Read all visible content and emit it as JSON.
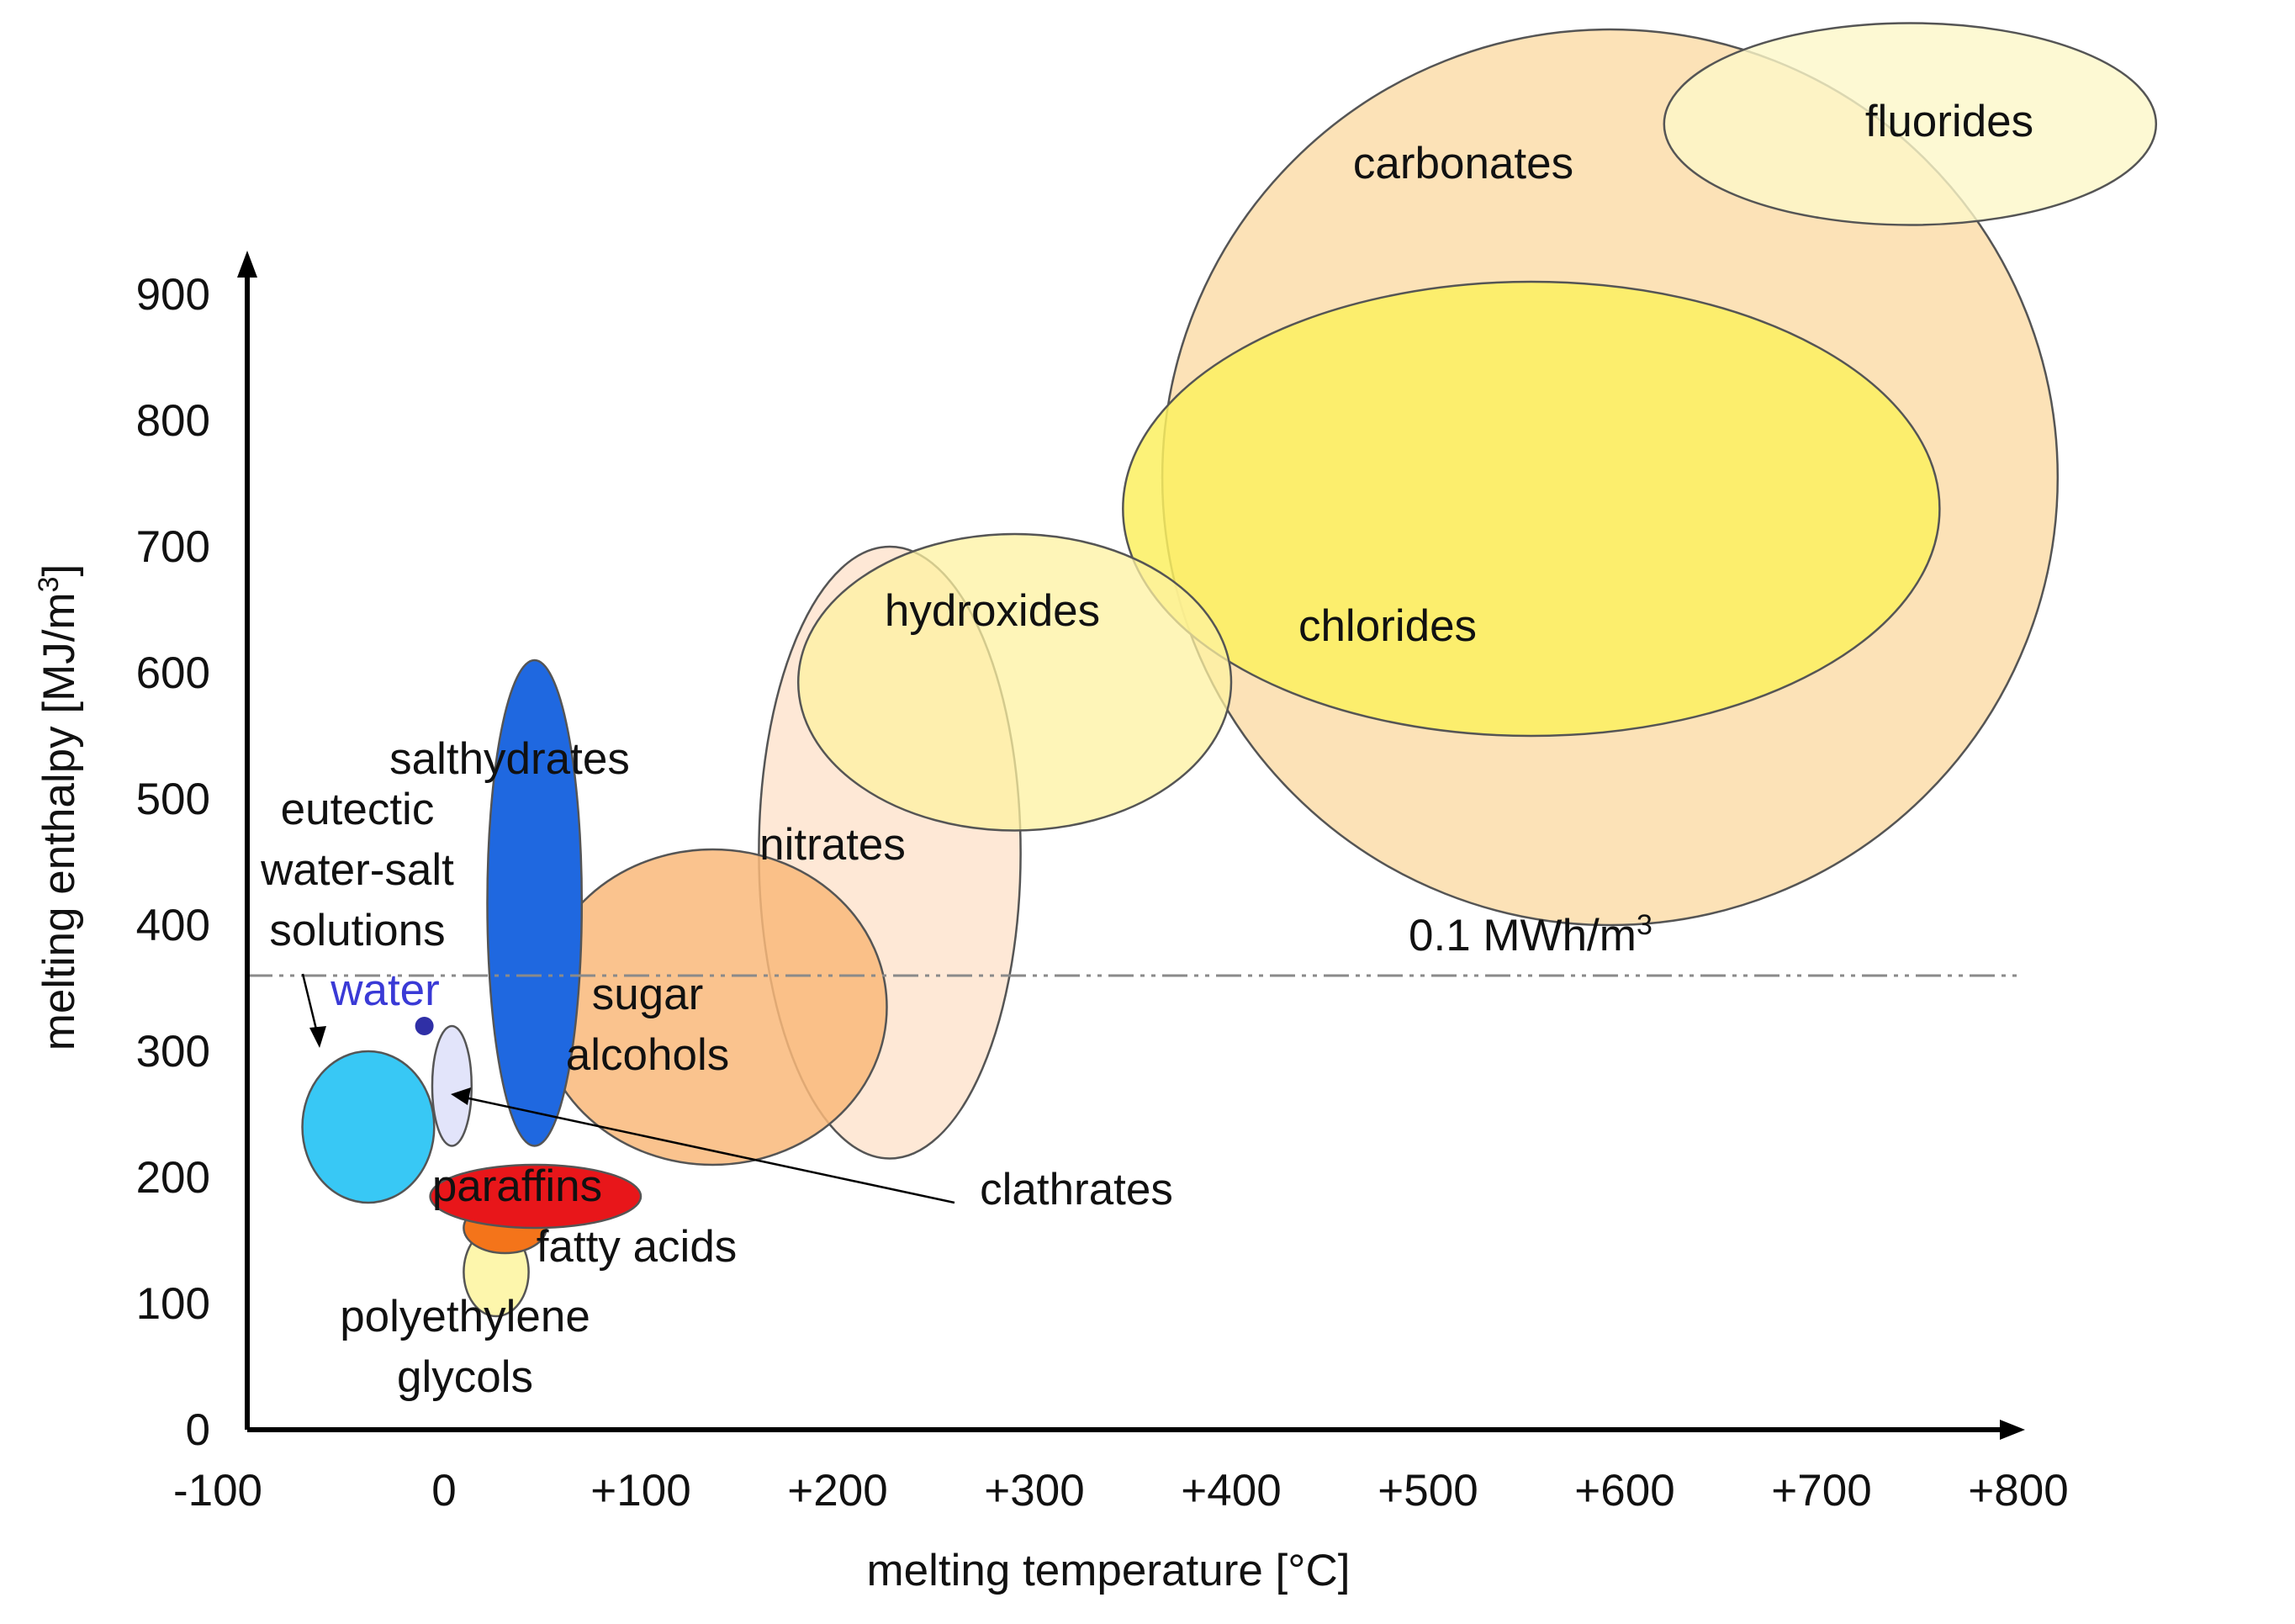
{
  "chart_data": {
    "type": "bubble-regions",
    "xlabel": "melting temperature [°C]",
    "ylabel": "melting enthalpy [MJ/m³]",
    "xlim": [
      -100,
      800
    ],
    "ylim": [
      0,
      900
    ],
    "x_ticks": [
      "-100",
      "0",
      "+100",
      "+200",
      "+300",
      "+400",
      "+500",
      "+600",
      "+700",
      "+800"
    ],
    "y_ticks": [
      "0",
      "100",
      "200",
      "300",
      "400",
      "500",
      "600",
      "700",
      "800",
      "900"
    ],
    "reference_line": {
      "label": "0.1 MWh/m³",
      "y": 360
    },
    "regions": [
      {
        "name": "carbonates",
        "label": "carbonates",
        "x_range": [
          365,
          820
        ],
        "y_range": [
          400,
          1110
        ],
        "color": "#fcddaa",
        "opacity": 0.85
      },
      {
        "name": "fluorides",
        "label": "fluorides",
        "x_range": [
          620,
          870
        ],
        "y_range": [
          955,
          1115
        ],
        "color": "#fdf7c8",
        "opacity": 0.8
      },
      {
        "name": "chlorides",
        "label": "chlorides",
        "x_range": [
          345,
          760
        ],
        "y_range": [
          550,
          910
        ],
        "color": "#fcf060",
        "opacity": 0.85
      },
      {
        "name": "nitrates",
        "label": "nitrates",
        "x_range": [
          160,
          293
        ],
        "y_range": [
          215,
          700
        ],
        "color": "#fde0c8",
        "opacity": 0.75
      },
      {
        "name": "hydroxides",
        "label": "hydroxides",
        "x_range": [
          180,
          400
        ],
        "y_range": [
          475,
          710
        ],
        "color": "#fdf1a0",
        "opacity": 0.75
      },
      {
        "name": "sugar-alcohols",
        "label": "sugar\nalcohols",
        "x_range": [
          48,
          225
        ],
        "y_range": [
          210,
          460
        ],
        "color": "#f9b97a",
        "opacity": 0.85
      },
      {
        "name": "salthydrates",
        "label": "salthydrates",
        "x_range": [
          22,
          70
        ],
        "y_range": [
          225,
          610
        ],
        "color": "#1f68e0",
        "opacity": 1.0
      },
      {
        "name": "eutectic",
        "label": "eutectic\nwater-salt\nsolutions",
        "x_range": [
          -72,
          -5
        ],
        "y_range": [
          180,
          300
        ],
        "color": "#38c8f5",
        "opacity": 1.0
      },
      {
        "name": "clathrates",
        "label": "clathrates",
        "x_range": [
          -6,
          14
        ],
        "y_range": [
          225,
          320
        ],
        "color": "#e2e4fa",
        "opacity": 1.0
      },
      {
        "name": "polyethylene-glycols",
        "label": "polyethylene\nglycols",
        "x_range": [
          10,
          43
        ],
        "y_range": [
          90,
          160
        ],
        "color": "#fdf6ac",
        "opacity": 1.0
      },
      {
        "name": "fatty-acids",
        "label": "fatty acids",
        "x_range": [
          10,
          52
        ],
        "y_range": [
          140,
          180
        ],
        "color": "#f4741a",
        "opacity": 1.0
      },
      {
        "name": "paraffins",
        "label": "paraffins",
        "x_range": [
          -7,
          100
        ],
        "y_range": [
          160,
          210
        ],
        "color": "#e8161a",
        "opacity": 1.0
      }
    ],
    "water": {
      "label": "water",
      "x": -10,
      "y": 320,
      "color": "#2f2fa6",
      "label_color": "#3a3ad6"
    }
  }
}
